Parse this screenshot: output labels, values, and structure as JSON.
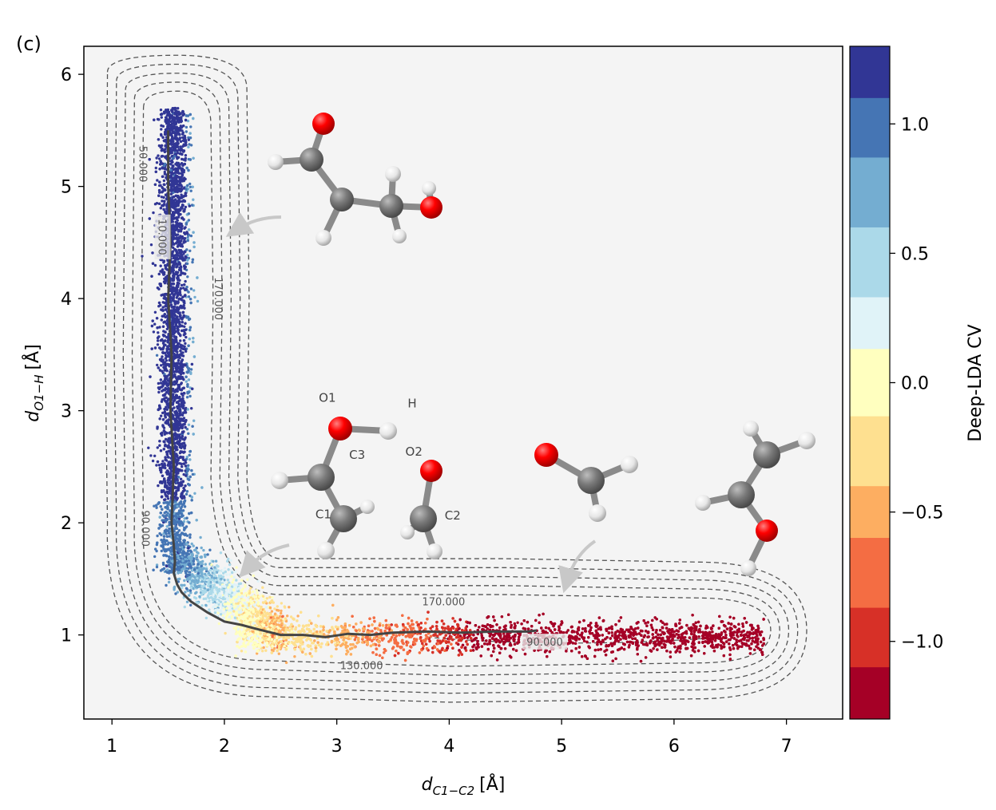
{
  "panel_label": "(c)",
  "chart_data": {
    "type": "scatter",
    "xlabel_main": "d",
    "xlabel_sub": "C1−C2",
    "xlabel_unit": "[Å]",
    "ylabel_main": "d",
    "ylabel_sub": "O1−H",
    "ylabel_unit": "[Å]",
    "xlim": [
      0.75,
      7.5
    ],
    "ylim": [
      0.25,
      6.25
    ],
    "x_ticks": [
      1,
      2,
      3,
      4,
      5,
      6,
      7
    ],
    "y_ticks": [
      1,
      2,
      3,
      4,
      5,
      6
    ],
    "x_tick_labels": [
      "1",
      "2",
      "3",
      "4",
      "5",
      "6",
      "7"
    ],
    "y_tick_labels": [
      "1",
      "2",
      "3",
      "4",
      "5",
      "6"
    ],
    "background_color": "#f4f4f4",
    "colorbar": {
      "label": "Deep-LDA CV",
      "range": [
        -1.3,
        1.3
      ],
      "ticks": [
        1.0,
        0.5,
        0.0,
        -0.5,
        -1.0
      ],
      "tick_labels": [
        "1.0",
        "0.5",
        "0.0",
        "−0.5",
        "−1.0"
      ],
      "levels": [
        {
          "from": 1.1,
          "to": 1.3,
          "color": "#313695"
        },
        {
          "from": 0.87,
          "to": 1.1,
          "color": "#4575b4"
        },
        {
          "from": 0.6,
          "to": 0.87,
          "color": "#74add1"
        },
        {
          "from": 0.33,
          "to": 0.6,
          "color": "#abd9e9"
        },
        {
          "from": 0.13,
          "to": 0.33,
          "color": "#e0f3f8"
        },
        {
          "from": -0.13,
          "to": 0.13,
          "color": "#ffffbf"
        },
        {
          "from": -0.4,
          "to": -0.13,
          "color": "#fee090"
        },
        {
          "from": -0.6,
          "to": -0.4,
          "color": "#fdae61"
        },
        {
          "from": -0.87,
          "to": -0.6,
          "color": "#f46d43"
        },
        {
          "from": -1.1,
          "to": -0.87,
          "color": "#d73027"
        },
        {
          "from": -1.3,
          "to": -1.1,
          "color": "#a50026"
        }
      ]
    },
    "path": {
      "x": [
        1.5,
        1.5,
        1.52,
        1.5,
        1.53,
        1.52,
        1.55,
        1.53,
        1.55,
        1.56,
        1.55,
        1.58,
        1.62,
        1.7,
        1.85,
        2.0,
        2.15,
        2.3,
        2.5,
        2.7,
        2.9,
        3.1,
        3.3,
        3.5,
        3.8,
        4.1,
        4.4,
        4.7,
        4.78
      ],
      "y": [
        5.5,
        5.0,
        4.5,
        4.0,
        3.5,
        3.0,
        2.5,
        2.0,
        1.8,
        1.65,
        1.55,
        1.45,
        1.38,
        1.3,
        1.2,
        1.12,
        1.09,
        1.05,
        1.0,
        1.0,
        0.98,
        1.01,
        1.0,
        1.02,
        1.03,
        1.02,
        1.03,
        1.03,
        1.04
      ]
    },
    "contour_labels": [
      {
        "text": "50.000",
        "x": 1.28,
        "y": 5.2
      },
      {
        "text": "10.000",
        "x": 1.45,
        "y": 4.55
      },
      {
        "text": "170.000",
        "x": 1.95,
        "y": 4.0
      },
      {
        "text": "90.000",
        "x": 1.3,
        "y": 1.95
      },
      {
        "text": "170.000",
        "x": 3.95,
        "y": 1.3
      },
      {
        "text": "90.000",
        "x": 4.85,
        "y": 0.94
      },
      {
        "text": "130.000",
        "x": 3.22,
        "y": 0.73
      }
    ],
    "atom_labels": [
      {
        "text": "O1",
        "x": 2.84,
        "y": 3.08
      },
      {
        "text": "H",
        "x": 3.63,
        "y": 3.03
      },
      {
        "text": "C3",
        "x": 3.11,
        "y": 2.57
      },
      {
        "text": "O2",
        "x": 3.61,
        "y": 2.6
      },
      {
        "text": "C1",
        "x": 2.81,
        "y": 2.04
      },
      {
        "text": "C2",
        "x": 3.96,
        "y": 2.03
      }
    ]
  }
}
